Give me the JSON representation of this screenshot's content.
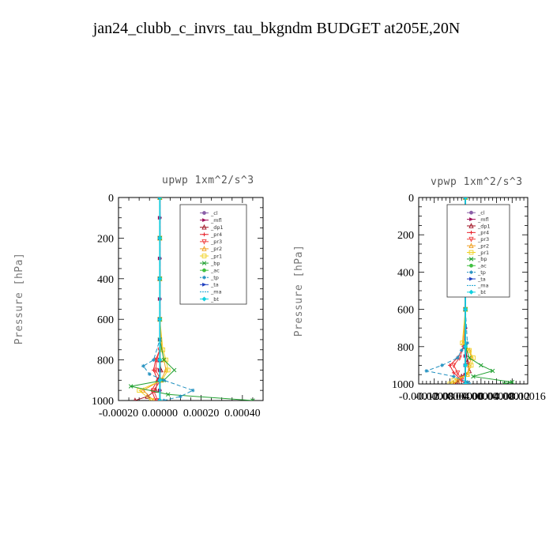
{
  "figure_title": "jan24_clubb_c_invrs_tau_bkgndm  BUDGET at205E,20N",
  "chart_data": [
    {
      "type": "line",
      "title": "upwp   1xm^2/s^3",
      "ylabel": "Pressure [hPa]",
      "xlabel": "",
      "xlim": [
        -0.0002,
        0.0005
      ],
      "ylim": [
        1000,
        0
      ],
      "xticks": [
        "-0.00020",
        "0.00000",
        "0.00020",
        "0.00040"
      ],
      "xtick_values": [
        -0.0002,
        0.0,
        0.0002,
        0.0004
      ],
      "yticks": [
        "0",
        "200",
        "400",
        "600",
        "800",
        "1000"
      ],
      "ytick_values": [
        0,
        200,
        400,
        600,
        800,
        1000
      ],
      "grid": false,
      "legend_position": "top-right",
      "series": [
        {
          "name": "_cl",
          "color": "#8a5fa8",
          "marker": "circle",
          "dash": "",
          "p": [
            0,
            100,
            200,
            300,
            400,
            500,
            600,
            700,
            800,
            850,
            900,
            950,
            1000
          ],
          "v": [
            0,
            0,
            0,
            0,
            0,
            0,
            0,
            0,
            0,
            0,
            0,
            0,
            0
          ]
        },
        {
          "name": "_mfl",
          "color": "#a0105a",
          "marker": "triangle-right",
          "dash": "",
          "p": [
            0,
            100,
            200,
            300,
            400,
            500,
            600,
            700,
            800,
            850,
            900,
            950,
            1000
          ],
          "v": [
            0,
            0,
            0,
            0,
            0,
            0,
            0,
            0,
            0,
            0,
            0,
            0,
            0
          ]
        },
        {
          "name": "_dp1",
          "color": "#a01020",
          "marker": "triangle-up",
          "dash": "",
          "p": [
            0,
            200,
            400,
            600,
            800,
            850,
            900,
            950,
            980,
            1000
          ],
          "v": [
            0,
            0,
            0,
            0,
            0,
            5e-06,
            -1e-05,
            -2e-05,
            -6e-05,
            -0.00012
          ]
        },
        {
          "name": "_pr4",
          "color": "#e8202a",
          "marker": "plus",
          "dash": "",
          "p": [
            0,
            200,
            400,
            600,
            750,
            800,
            850,
            900,
            950,
            1000
          ],
          "v": [
            0,
            0,
            0,
            0,
            0,
            -2e-05,
            -3e-05,
            -1e-05,
            -4e-05,
            -2e-05
          ]
        },
        {
          "name": "_pr3",
          "color": "#f04040",
          "marker": "triangle-down",
          "dash": "",
          "p": [
            0,
            200,
            400,
            600,
            750,
            800,
            850,
            900,
            950,
            1000
          ],
          "v": [
            0,
            0,
            0,
            0,
            0,
            -1.5e-05,
            -2e-05,
            5e-06,
            -3e-05,
            -1e-05
          ]
        },
        {
          "name": "_pr2",
          "color": "#f0a020",
          "marker": "triangle-up",
          "dash": "",
          "p": [
            0,
            200,
            400,
            600,
            750,
            800,
            850,
            900,
            950,
            1000
          ],
          "v": [
            0,
            0,
            0,
            0,
            1e-05,
            2e-05,
            3e-05,
            5e-06,
            -8e-05,
            -3e-05
          ]
        },
        {
          "name": "_pr1",
          "color": "#f0d020",
          "marker": "square",
          "dash": "",
          "p": [
            0,
            200,
            400,
            600,
            750,
            800,
            850,
            900,
            950,
            1000
          ],
          "v": [
            0,
            0,
            0,
            0,
            1.5e-05,
            3e-05,
            4e-05,
            1e-05,
            -0.0001,
            -4e-05
          ]
        },
        {
          "name": "_bp",
          "color": "#20a030",
          "marker": "cross",
          "dash": "",
          "p": [
            0,
            200,
            400,
            600,
            700,
            800,
            850,
            900,
            930,
            970,
            1000
          ],
          "v": [
            0,
            0,
            0,
            0,
            0,
            2e-05,
            7e-05,
            2e-05,
            -0.00014,
            4e-05,
            0.00045
          ]
        },
        {
          "name": "_ac",
          "color": "#40c040",
          "marker": "circle",
          "dash": "",
          "p": [
            0,
            200,
            400,
            600,
            800,
            900,
            1000
          ],
          "v": [
            0,
            0,
            0,
            0,
            0,
            0,
            0
          ]
        },
        {
          "name": "_tp",
          "color": "#2090c0",
          "marker": "asterisk",
          "dash": "5,3",
          "p": [
            0,
            200,
            400,
            600,
            700,
            800,
            830,
            870,
            900,
            950,
            980,
            1000
          ],
          "v": [
            0,
            0,
            0,
            0,
            0,
            -3e-05,
            -8e-05,
            -5e-05,
            2e-05,
            0.00016,
            0.0001,
            2e-05
          ]
        },
        {
          "name": "_ta",
          "color": "#2040c0",
          "marker": "triangle-right",
          "dash": "",
          "p": [
            0,
            200,
            400,
            600,
            800,
            900,
            1000
          ],
          "v": [
            0,
            0,
            0,
            0,
            0,
            0,
            0
          ]
        },
        {
          "name": "_ma",
          "color": "#10a0d0",
          "marker": "none",
          "dash": "6,3",
          "p": [
            0,
            200,
            400,
            600,
            800,
            900,
            1000
          ],
          "v": [
            0,
            0,
            0,
            0,
            0,
            0,
            0
          ]
        },
        {
          "name": "_bt",
          "color": "#10d0e0",
          "marker": "diamond",
          "dash": "",
          "p": [
            0,
            200,
            400,
            600,
            800,
            900,
            1000
          ],
          "v": [
            0,
            0,
            0,
            0,
            0,
            0,
            0
          ]
        }
      ]
    },
    {
      "type": "line",
      "title": "vpwp   1xm^2/s^3",
      "ylabel": "Pressure [hPa]",
      "xlabel": "",
      "xlim": [
        -0.00012,
        0.00016
      ],
      "ylim": [
        1000,
        0
      ],
      "xticks": [
        "-0.00012",
        "-0.00008",
        "-0.00004",
        "0.00000",
        "0.00004",
        "0.00008",
        "0.00012",
        "0.00016"
      ],
      "xtick_values": [
        -0.00012,
        -8e-05,
        -4e-05,
        0.0,
        4e-05,
        8e-05,
        0.00012,
        0.00016
      ],
      "yticks": [
        "0",
        "200",
        "400",
        "600",
        "800",
        "1000"
      ],
      "ytick_values": [
        0,
        200,
        400,
        600,
        800,
        1000
      ],
      "grid": false,
      "legend_position": "top-right",
      "series": [
        {
          "name": "_cl",
          "color": "#8a5fa8",
          "marker": "circle",
          "dash": "",
          "p": [
            0,
            100,
            200,
            300,
            400,
            500,
            600,
            700,
            800,
            850,
            900,
            950,
            1000
          ],
          "v": [
            0,
            0,
            0,
            0,
            0,
            0,
            0,
            0,
            0,
            0,
            0,
            0,
            0
          ]
        },
        {
          "name": "_mfl",
          "color": "#a0105a",
          "marker": "triangle-right",
          "dash": "",
          "p": [
            0,
            100,
            200,
            300,
            400,
            500,
            600,
            700,
            800,
            850,
            900,
            950,
            1000
          ],
          "v": [
            0,
            0,
            0,
            0,
            0,
            0,
            0,
            0,
            0,
            0,
            0,
            0,
            0
          ]
        },
        {
          "name": "_dp1",
          "color": "#a01020",
          "marker": "triangle-up",
          "dash": "",
          "p": [
            0,
            200,
            400,
            600,
            800,
            880,
            930,
            960,
            990,
            1000
          ],
          "v": [
            0,
            0,
            0,
            0,
            0,
            5e-06,
            1e-05,
            -1e-05,
            -2e-05,
            -3e-05
          ]
        },
        {
          "name": "_pr4",
          "color": "#e8202a",
          "marker": "plus",
          "dash": "",
          "p": [
            0,
            200,
            400,
            600,
            800,
            860,
            900,
            940,
            980,
            1000
          ],
          "v": [
            0,
            0,
            0,
            0,
            -5e-06,
            -2e-05,
            -4e-05,
            -3e-05,
            -1e-05,
            0
          ]
        },
        {
          "name": "_pr3",
          "color": "#f04040",
          "marker": "triangle-down",
          "dash": "",
          "p": [
            0,
            200,
            400,
            600,
            800,
            860,
            900,
            940,
            980,
            1000
          ],
          "v": [
            0,
            0,
            0,
            0,
            -4e-06,
            -1.5e-05,
            -3e-05,
            -2e-05,
            -1e-05,
            0
          ]
        },
        {
          "name": "_pr2",
          "color": "#f0a020",
          "marker": "triangle-up",
          "dash": "",
          "p": [
            0,
            200,
            400,
            600,
            780,
            820,
            860,
            900,
            950,
            980,
            1000
          ],
          "v": [
            0,
            0,
            0,
            0,
            -5e-06,
            1e-05,
            1.5e-05,
            1e-05,
            5e-06,
            -2e-05,
            -3e-05
          ]
        },
        {
          "name": "_pr1",
          "color": "#f0d020",
          "marker": "square",
          "dash": "",
          "p": [
            0,
            200,
            400,
            600,
            780,
            820,
            860,
            900,
            950,
            980,
            1000
          ],
          "v": [
            0,
            0,
            0,
            0,
            -8e-06,
            1e-05,
            2e-05,
            1.5e-05,
            5e-06,
            -3e-05,
            -4e-05
          ]
        },
        {
          "name": "_bp",
          "color": "#20a030",
          "marker": "cross",
          "dash": "",
          "p": [
            0,
            200,
            400,
            600,
            800,
            860,
            900,
            930,
            960,
            990,
            1000
          ],
          "v": [
            0,
            0,
            0,
            0,
            0,
            1e-05,
            4e-05,
            7e-05,
            2e-05,
            0.00012,
            0.0001
          ]
        },
        {
          "name": "_ac",
          "color": "#40c040",
          "marker": "circle",
          "dash": "",
          "p": [
            0,
            200,
            400,
            600,
            800,
            900,
            1000
          ],
          "v": [
            0,
            0,
            0,
            0,
            0,
            0,
            0
          ]
        },
        {
          "name": "_tp",
          "color": "#2090c0",
          "marker": "asterisk",
          "dash": "5,3",
          "p": [
            0,
            200,
            400,
            600,
            780,
            820,
            860,
            900,
            930,
            960,
            990,
            1000
          ],
          "v": [
            0,
            0,
            0,
            0,
            5e-06,
            -1e-05,
            -2e-05,
            -6e-05,
            -0.0001,
            -3e-05,
            5e-06,
            1e-05
          ]
        },
        {
          "name": "_ta",
          "color": "#2040c0",
          "marker": "triangle-right",
          "dash": "",
          "p": [
            0,
            200,
            400,
            600,
            800,
            900,
            1000
          ],
          "v": [
            0,
            0,
            0,
            0,
            0,
            0,
            0
          ]
        },
        {
          "name": "_ma",
          "color": "#10a0d0",
          "marker": "none",
          "dash": "6,3",
          "p": [
            0,
            200,
            400,
            600,
            800,
            900,
            1000
          ],
          "v": [
            0,
            0,
            0,
            0,
            0,
            0,
            0
          ]
        },
        {
          "name": "_bt",
          "color": "#10d0e0",
          "marker": "diamond",
          "dash": "",
          "p": [
            0,
            200,
            400,
            600,
            800,
            900,
            1000
          ],
          "v": [
            0,
            0,
            0,
            0,
            0,
            0,
            0
          ]
        }
      ]
    }
  ]
}
